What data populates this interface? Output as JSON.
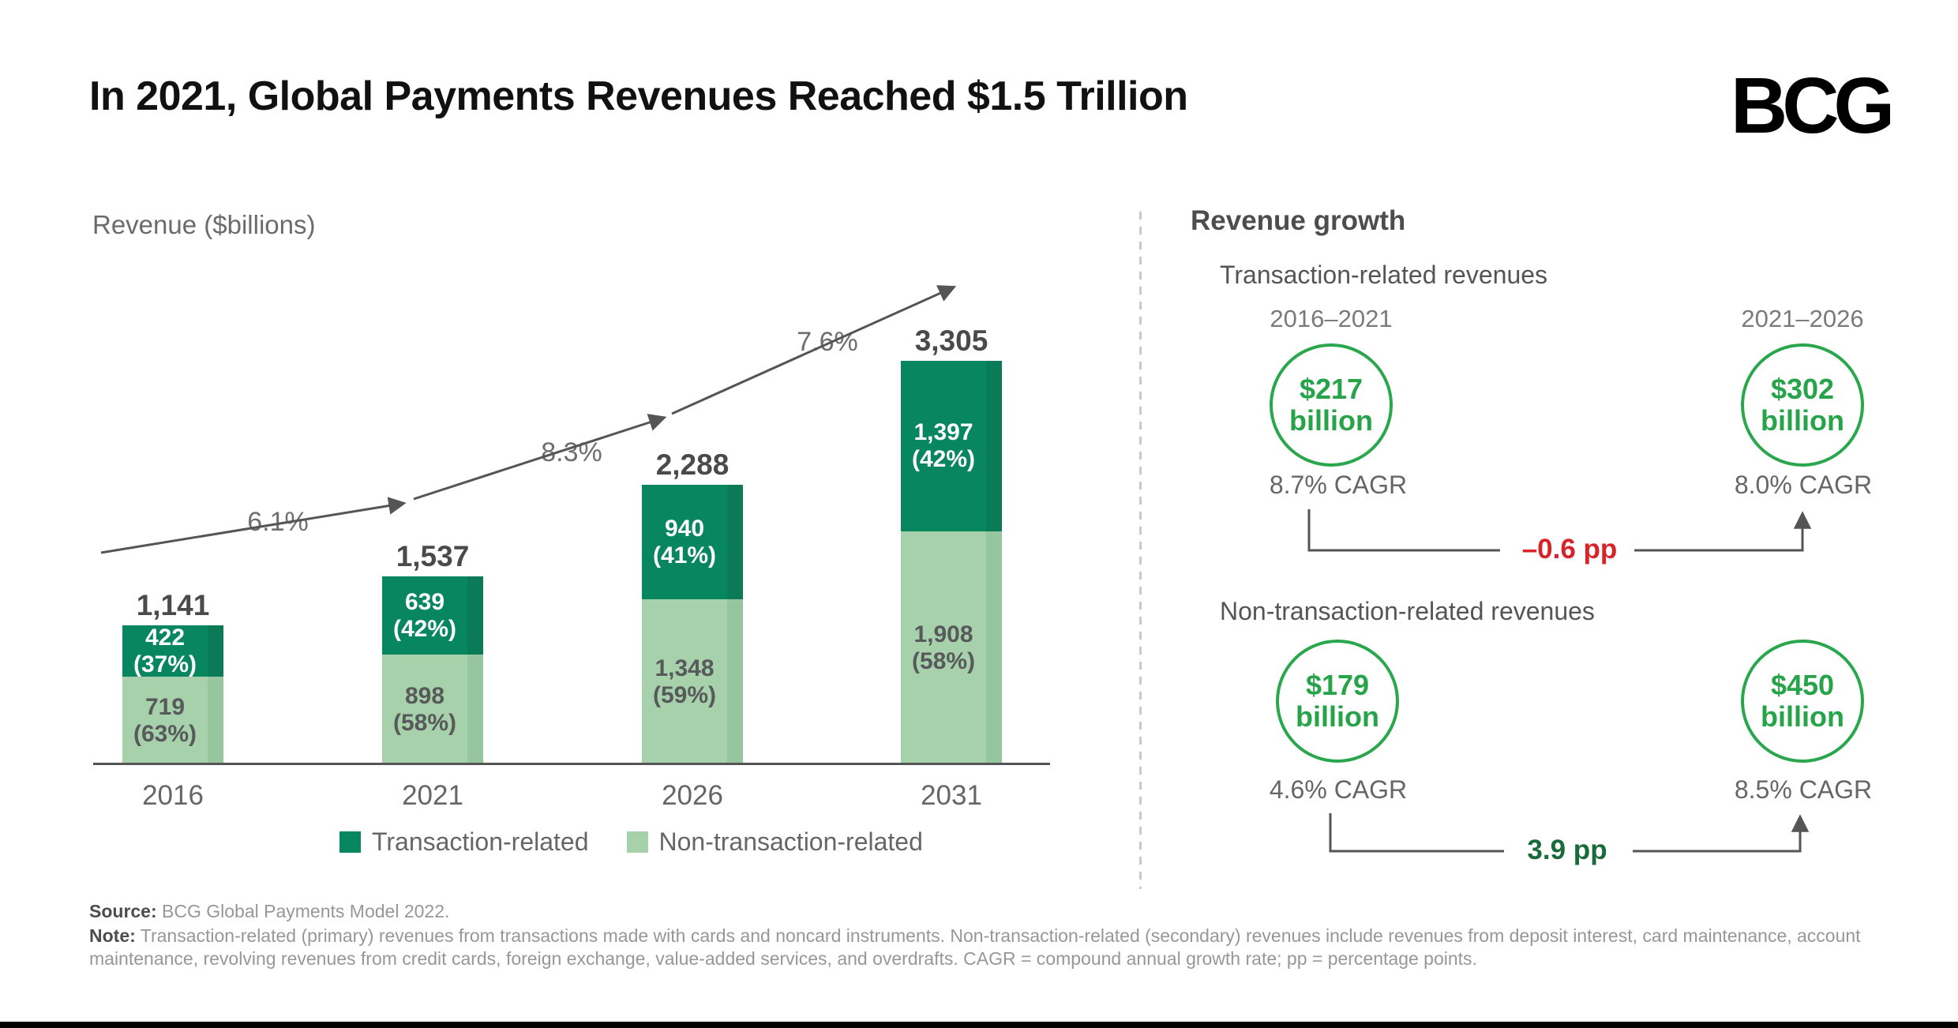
{
  "header": {
    "title": "In 2021, Global Payments Revenues Reached $1.5 Trillion",
    "logo_text": "BCG"
  },
  "chart_data": {
    "type": "bar",
    "subtype": "stacked",
    "title": "In 2021, Global Payments Revenues Reached $1.5 Trillion",
    "ylabel": "Revenue ($billions)",
    "xlabel": "",
    "grid": false,
    "legend_position": "bottom",
    "categories": [
      "2016",
      "2021",
      "2026",
      "2031"
    ],
    "series": [
      {
        "name": "Transaction-related",
        "color": "#08865F",
        "shade_color": "#0A7A57",
        "values": [
          422,
          639,
          940,
          1397
        ],
        "value_labels": [
          "422",
          "639",
          "940",
          "1,397"
        ],
        "pct_labels": [
          "(37%)",
          "(42%)",
          "(41%)",
          "(42%)"
        ]
      },
      {
        "name": "Non-transaction-related",
        "color": "#A6D1AA",
        "shade_color": "#96C69E",
        "values": [
          719,
          898,
          1348,
          1908
        ],
        "value_labels": [
          "719",
          "898",
          "1,348",
          "1,908"
        ],
        "pct_labels": [
          "(63%)",
          "(58%)",
          "(59%)",
          "(58%)"
        ]
      }
    ],
    "totals": [
      "1,141",
      "1,537",
      "2,288",
      "3,305"
    ],
    "growth_arrow_labels": [
      "6.1%",
      "8.3%",
      "7.6%"
    ]
  },
  "growth": {
    "title": "Revenue growth",
    "sections": [
      {
        "label": "Transaction-related revenues",
        "periods": [
          "2016–2021",
          "2021–2026"
        ],
        "circles": [
          {
            "value": "$217",
            "unit": "billion"
          },
          {
            "value": "$302",
            "unit": "billion"
          }
        ],
        "cagrs": [
          "8.7% CAGR",
          "8.0% CAGR"
        ],
        "delta": {
          "text": "–0.6 pp",
          "color": "#D8232A"
        }
      },
      {
        "label": "Non-transaction-related revenues",
        "circles": [
          {
            "value": "$179",
            "unit": "billion"
          },
          {
            "value": "$450",
            "unit": "billion"
          }
        ],
        "cagrs": [
          "4.6% CAGR",
          "8.5% CAGR"
        ],
        "delta": {
          "text": "3.9 pp",
          "color": "#1A6B3C"
        }
      }
    ],
    "circle_outline_color": "#2AA74D",
    "circle_text_color": "#27A349"
  },
  "footer": {
    "source_label": "Source:",
    "source_text": "BCG Global Payments Model 2022.",
    "note_label": "Note:",
    "note_text": "Transaction-related (primary) revenues from transactions made with cards and noncard instruments. Non-transaction-related (secondary) revenues include revenues from deposit interest, card maintenance, account maintenance, revolving revenues from credit cards, foreign exchange, value-added services, and overdrafts. CAGR = compound annual growth rate; pp = percentage points."
  },
  "colors": {
    "axis_line": "#555555",
    "divider": "#C9C9C9"
  }
}
